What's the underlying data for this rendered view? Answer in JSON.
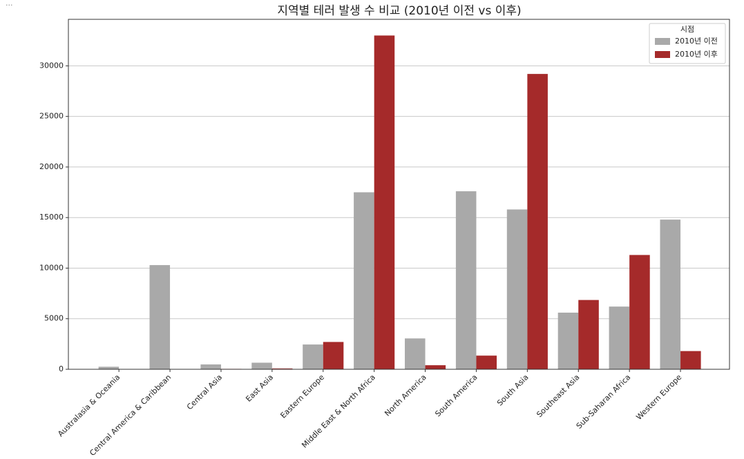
{
  "output_marker": "...",
  "chart_data": {
    "type": "bar",
    "title": "지역별 테러 발생 수 비교 (2010년 이전 vs 이후)",
    "categories": [
      "Australasia & Oceania",
      "Central America & Caribbean",
      "Central Asia",
      "East Asia",
      "Eastern Europe",
      "Middle East & North Africa",
      "North America",
      "South America",
      "South Asia",
      "Southeast Asia",
      "Sub-Saharan Africa",
      "Western Europe"
    ],
    "series": [
      {
        "name": "2010년 이전",
        "color": "#a9a9a9",
        "values": [
          250,
          10300,
          480,
          650,
          2450,
          17500,
          3050,
          17600,
          15800,
          5600,
          6200,
          14800
        ]
      },
      {
        "name": "2010년 이후",
        "color": "#a52a2a",
        "values": [
          20,
          10,
          40,
          80,
          2700,
          33000,
          400,
          1350,
          29200,
          6850,
          11300,
          1800
        ]
      }
    ],
    "legend_title": "시점",
    "legend_position": "upper right",
    "ylim": [
      0,
      34600
    ],
    "yticks": [
      0,
      5000,
      10000,
      15000,
      20000,
      25000,
      30000
    ],
    "grid": true
  }
}
